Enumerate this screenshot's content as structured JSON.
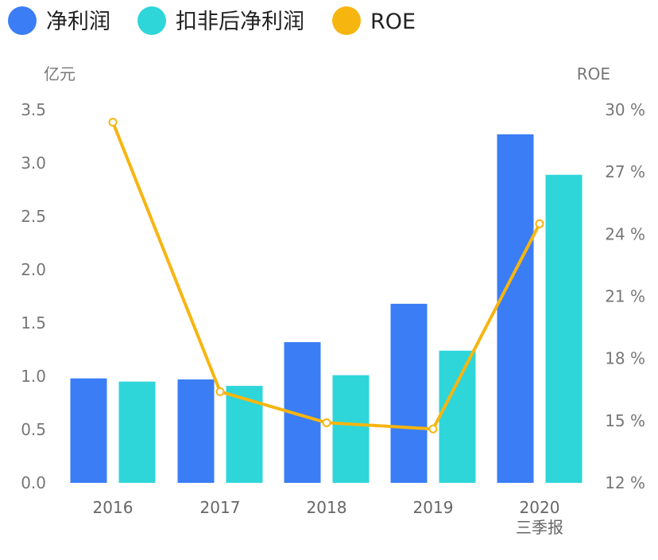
{
  "chart_data": {
    "type": "bar",
    "categories": [
      "2016",
      "2017",
      "2018",
      "2019",
      "2020"
    ],
    "category_sublabels": [
      "",
      "",
      "",
      "",
      "三季报"
    ],
    "series": [
      {
        "name": "净利润",
        "kind": "bar",
        "axis": "left",
        "color": "#3A7DF5",
        "values": [
          0.98,
          0.97,
          1.32,
          1.68,
          3.27
        ]
      },
      {
        "name": "扣非后净利润",
        "kind": "bar",
        "axis": "left",
        "color": "#2ED6D9",
        "values": [
          0.95,
          0.91,
          1.01,
          1.24,
          2.89
        ]
      },
      {
        "name": "ROE",
        "kind": "line",
        "axis": "right",
        "color": "#F7B510",
        "values": [
          29.4,
          16.4,
          14.9,
          14.6,
          24.5
        ]
      }
    ],
    "y_left": {
      "label": "亿元",
      "ylim": [
        0,
        3.5
      ],
      "ticks": [
        "0.0",
        "0.5",
        "1.0",
        "1.5",
        "2.0",
        "2.5",
        "3.0",
        "3.5"
      ]
    },
    "y_right": {
      "label": "ROE",
      "ylim": [
        12,
        30
      ],
      "ticks": [
        "12 %",
        "15 %",
        "18 %",
        "21 %",
        "24 %",
        "27 %",
        "30 %"
      ]
    },
    "legend_position": "top-left",
    "grid": false
  }
}
